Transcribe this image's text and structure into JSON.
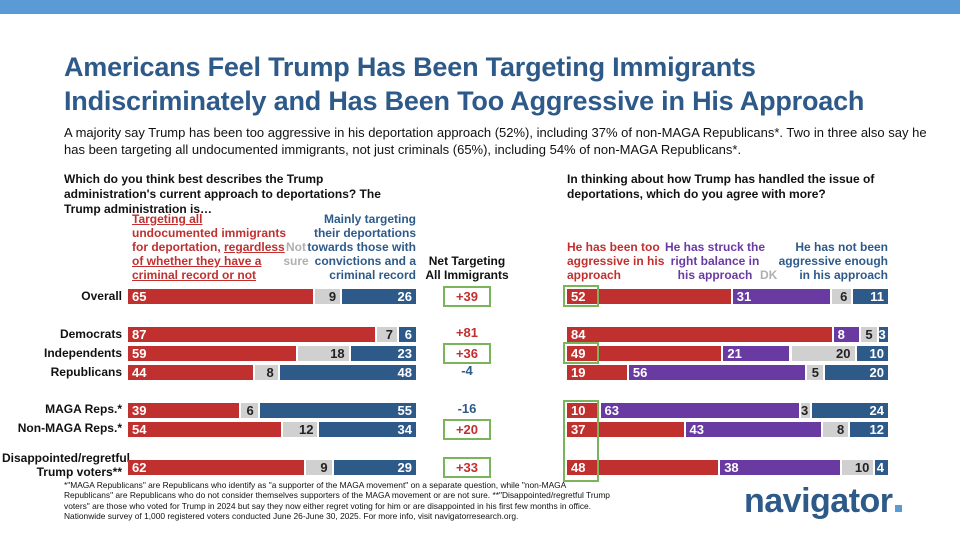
{
  "title_line1": "Americans Feel Trump Has Been Targeting Immigrants",
  "title_line2": "Indiscriminately and Has Been Too Aggressive in His Approach",
  "subtitle": "A majority say Trump has been too aggressive in his deportation approach (52%), including 37% of non-MAGA Republicans*. Two in three also say he has been targeting all undocumented immigrants, not just criminals (65%), including 54% of non-MAGA Republicans*.",
  "left_question": "Which do you think best describes the Trump administration's current approach to deportations? The Trump administration is…",
  "right_question": "In thinking about how Trump has handled the issue of deportations, which do you agree with more?",
  "left_headers": {
    "targeting_all_l1": "Targeting all",
    "targeting_all_l2": "undocumented immigrants",
    "targeting_all_l3": "for deportation,",
    "targeting_all_l3u": "regardless",
    "targeting_all_l4": "of whether they have a",
    "targeting_all_l5": "criminal record or not",
    "not_sure_l1": "Not",
    "not_sure_l2": "sure",
    "mainly_l1": "Mainly targeting",
    "mainly_l2": "their deportations",
    "mainly_l3": "towards those with",
    "mainly_l4": "convictions and a",
    "mainly_l5": "criminal record"
  },
  "net_header_l1": "Net Targeting",
  "net_header_l2": "All Immigrants",
  "right_headers": {
    "aggr_l1": "He has been too",
    "aggr_l2": "aggressive in his",
    "aggr_l3": "approach",
    "bal_l1": "He has struck the",
    "bal_l2": "right balance in",
    "bal_l3": "his approach",
    "dk": "DK",
    "notenough_l1": "He has not been",
    "notenough_l2": "aggressive enough",
    "notenough_l3": "in his approach"
  },
  "colors": {
    "red": "#c0302f",
    "blue": "#2e5a8a",
    "purple": "#6a3aa3",
    "gray": "#d0d0d0",
    "green": "#7ab55c",
    "topbar": "#5b9bd5"
  },
  "chart_data": [
    {
      "type": "bar",
      "orientation": "horizontal-stacked",
      "title": "Which do you think best describes the Trump administration's current approach to deportations? The Trump administration is…",
      "categories": [
        "Overall",
        "Democrats",
        "Independents",
        "Republicans",
        "MAGA Reps.*",
        "Non-MAGA Reps.*",
        "Disappointed/regretful Trump voters**"
      ],
      "series": [
        {
          "name": "Targeting all undocumented immigrants for deportation, regardless of whether they have a criminal record or not",
          "values": [
            65,
            87,
            59,
            44,
            39,
            54,
            62
          ]
        },
        {
          "name": "Not sure",
          "values": [
            9,
            7,
            18,
            8,
            6,
            12,
            9
          ]
        },
        {
          "name": "Mainly targeting their deportations towards those with convictions and a criminal record",
          "values": [
            26,
            6,
            23,
            48,
            55,
            34,
            29
          ]
        }
      ],
      "net": [
        "+39",
        "+81",
        "+36",
        "-4",
        "-16",
        "+20",
        "+33"
      ],
      "net_boxed": [
        true,
        false,
        true,
        false,
        false,
        true,
        true
      ]
    },
    {
      "type": "bar",
      "orientation": "horizontal-stacked",
      "title": "In thinking about how Trump has handled the issue of deportations, which do you agree with more?",
      "categories": [
        "Overall",
        "Democrats",
        "Independents",
        "Republicans",
        "MAGA Reps.*",
        "Non-MAGA Reps.*",
        "Disappointed/regretful Trump voters**"
      ],
      "series": [
        {
          "name": "He has been too aggressive in his approach",
          "values": [
            52,
            84,
            49,
            19,
            10,
            37,
            48
          ]
        },
        {
          "name": "He has struck the right balance in his approach",
          "values": [
            31,
            8,
            21,
            56,
            63,
            43,
            38
          ]
        },
        {
          "name": "DK",
          "values": [
            6,
            5,
            20,
            5,
            3,
            8,
            10
          ]
        },
        {
          "name": "He has not been aggressive enough in his approach",
          "values": [
            11,
            3,
            10,
            20,
            24,
            12,
            4
          ]
        }
      ]
    }
  ],
  "row_labels": [
    "Overall",
    "Democrats",
    "Independents",
    "Republicans",
    "MAGA Reps.*",
    "Non-MAGA Reps.*",
    "Disappointed/regretful",
    "Trump voters**"
  ],
  "footnote_l1": "*\"MAGA Republicans\" are Republicans who identify as \"a supporter of the MAGA movement\" on a separate question, while \"non-MAGA",
  "footnote_l2": "Republicans\" are Republicans who do not consider themselves supporters of the MAGA movement or are not sure. **\"Disappointed/regretful Trump",
  "footnote_l3": "voters\" are those who voted for Trump in 2024 but say they now either regret voting for him or are disappointed in his first few months in office.",
  "footnote_l4": "Nationwide survey of 1,000 registered voters conducted June 26-June 30, 2025. For more info, visit navigatorresearch.org.",
  "logo": "navigator"
}
